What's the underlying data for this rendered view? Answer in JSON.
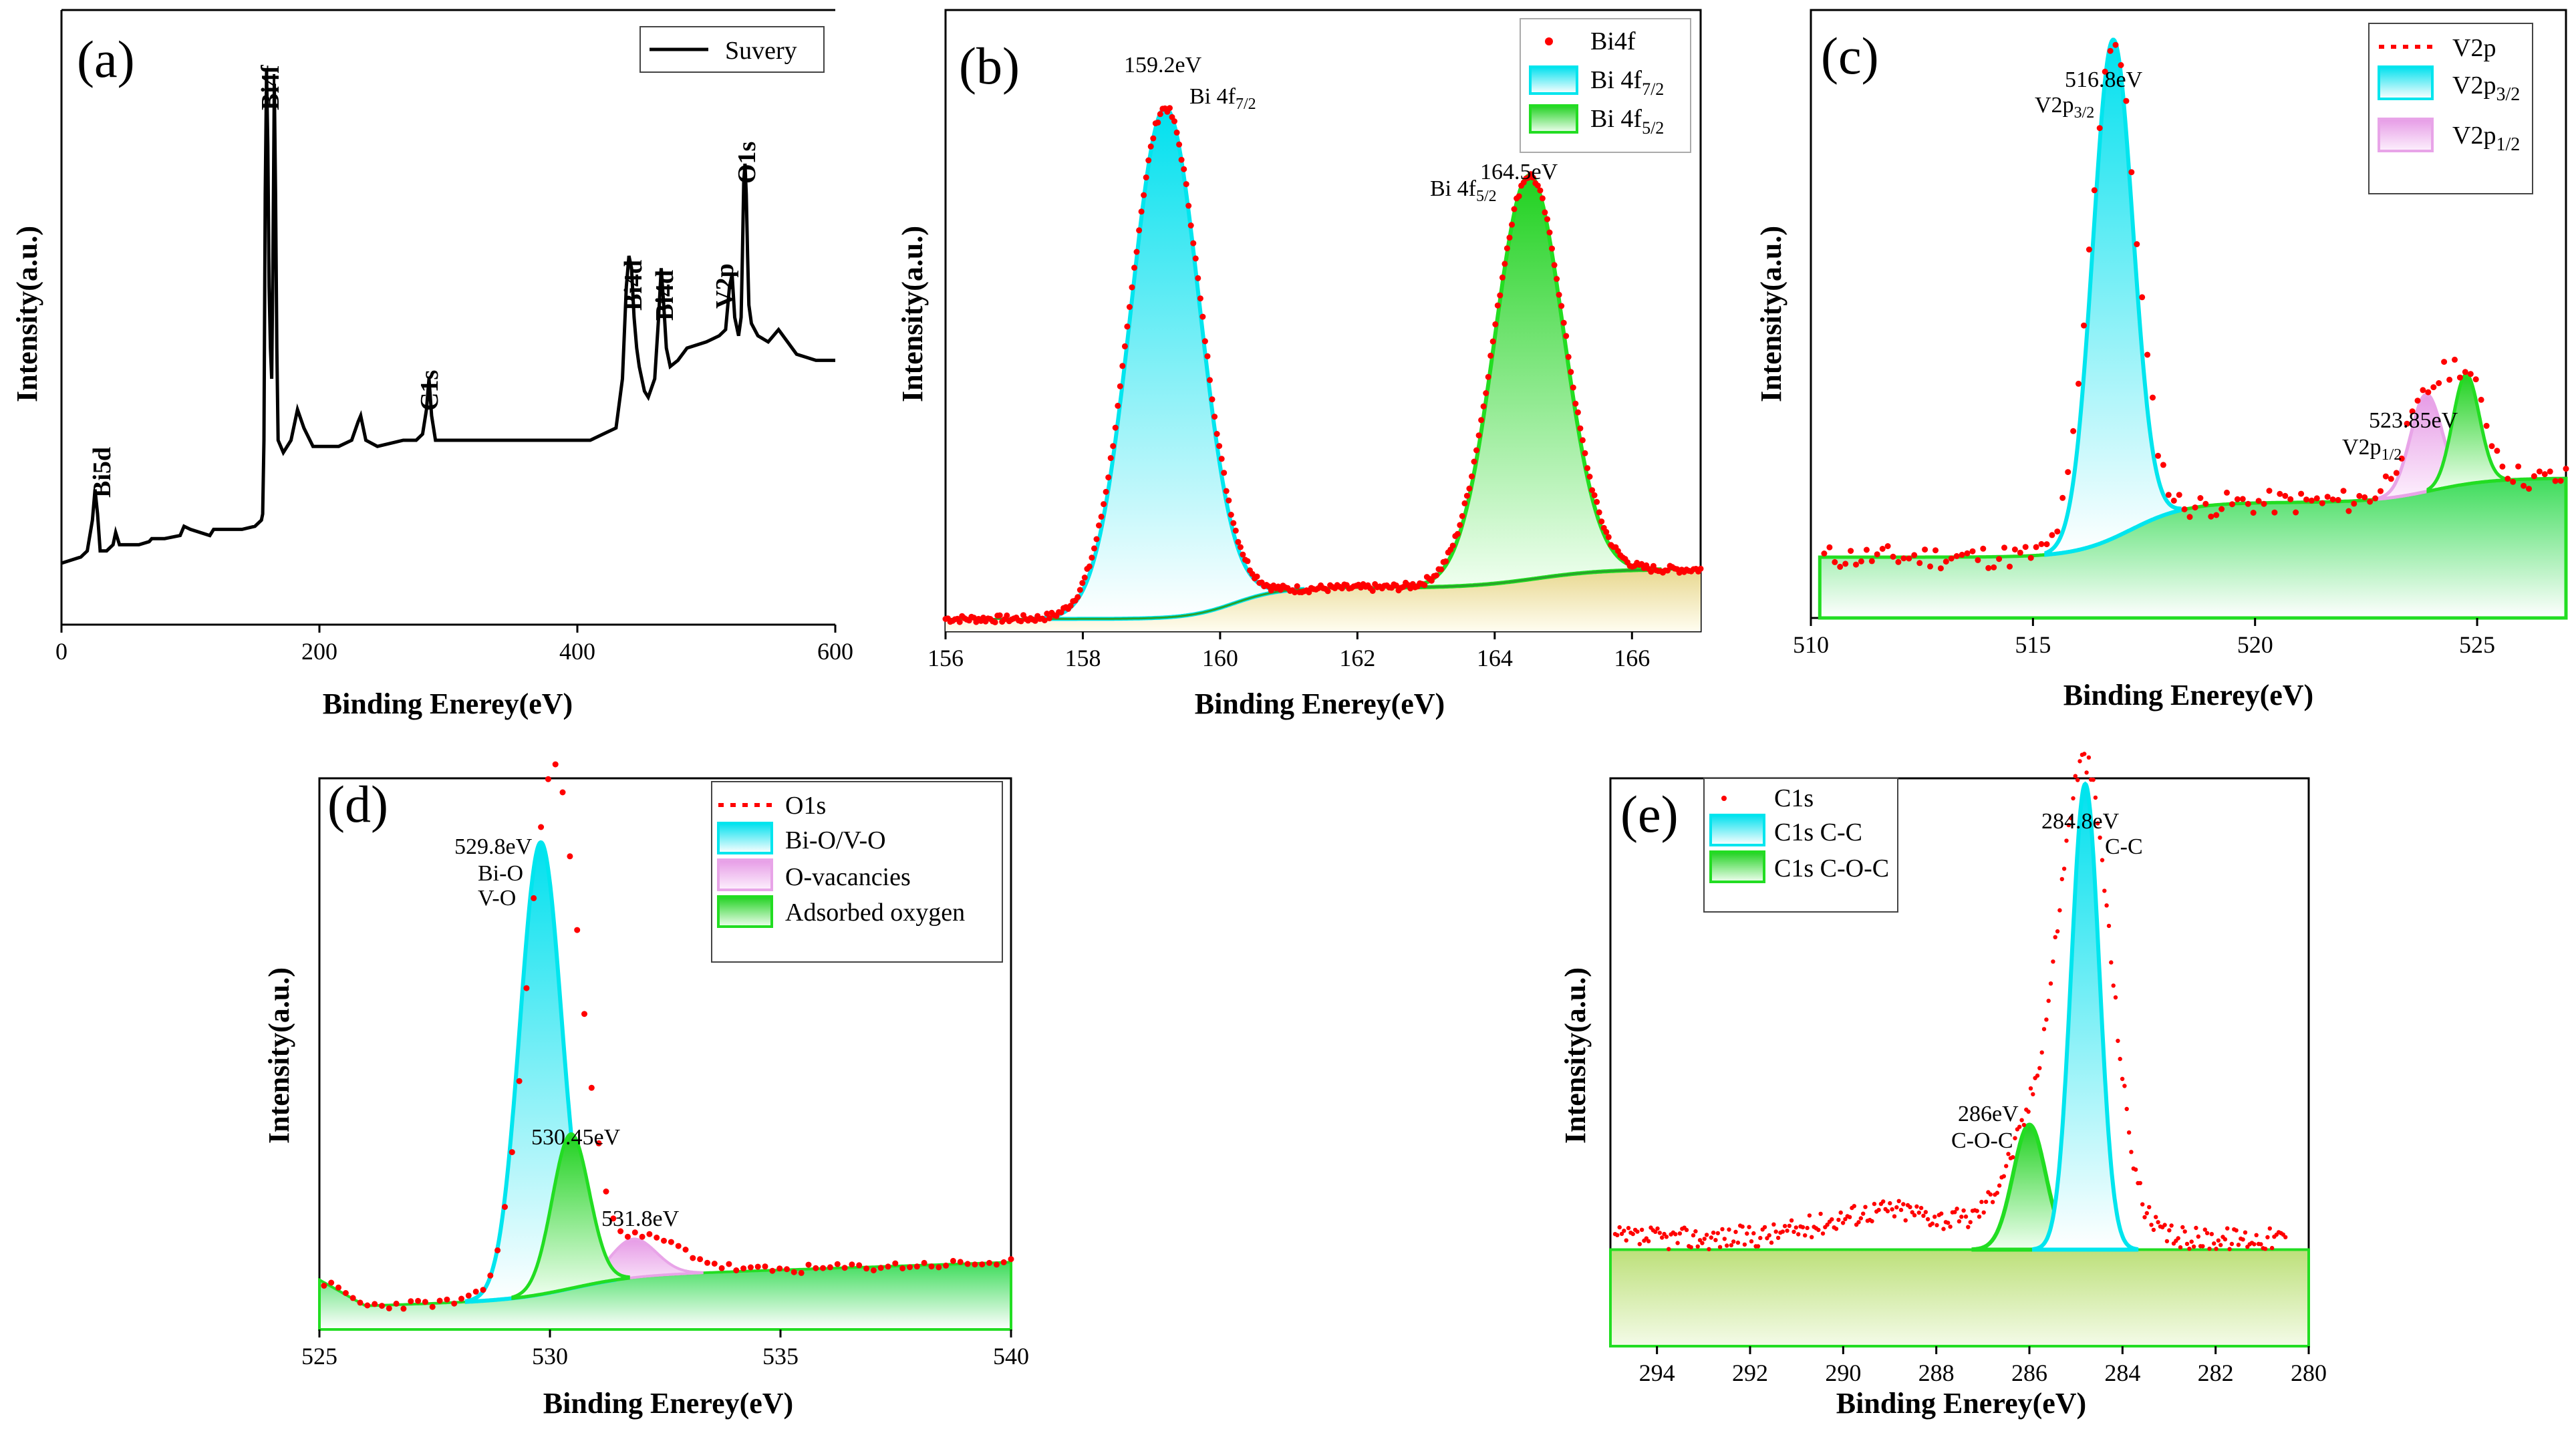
{
  "chart_data": [
    {
      "panel": "(a)",
      "type": "line",
      "xlabel": "Binding Enerey(eV)",
      "ylabel": "Intensity(a.u.)",
      "xlim": [
        0,
        600
      ],
      "ylim": [
        0,
        100
      ],
      "xticks": [
        "0",
        "200",
        "400",
        "600"
      ],
      "legend": [
        "Suvery"
      ],
      "series": [
        {
          "name": "Suvery",
          "x": [
            0,
            15,
            20,
            24,
            26,
            28,
            30,
            35,
            40,
            42,
            45,
            60,
            68,
            70,
            80,
            92,
            95,
            100,
            115,
            118,
            125,
            140,
            150,
            155,
            156,
            157,
            158,
            159,
            160,
            161,
            162,
            163,
            164,
            165,
            166,
            167,
            168,
            172,
            178,
            183,
            188,
            195,
            205,
            215,
            225,
            230,
            232,
            236,
            245,
            265,
            275,
            280,
            283,
            285,
            287,
            290,
            300,
            315,
            325,
            345,
            365,
            385,
            400,
            410,
            420,
            430,
            435,
            438,
            440,
            442,
            444,
            446,
            448,
            452,
            455,
            460,
            463,
            465,
            467,
            469,
            472,
            478,
            485,
            500,
            510,
            515,
            518,
            520,
            522,
            525,
            527,
            528,
            529,
            530,
            531,
            532,
            533,
            535,
            540,
            548,
            556,
            570,
            585,
            600
          ],
          "y": [
            10,
            11,
            12,
            17,
            22,
            18,
            12,
            12,
            13,
            15,
            13,
            13,
            13.5,
            14,
            14,
            14.5,
            16,
            15.5,
            14.5,
            15.5,
            15.5,
            15.5,
            16,
            17,
            18,
            30,
            70,
            90,
            78,
            55,
            45,
            40,
            60,
            88,
            70,
            45,
            30,
            28,
            30,
            35,
            32,
            29,
            29,
            29,
            30,
            33,
            34,
            30,
            29,
            30,
            30,
            31,
            35,
            40,
            34,
            30,
            30,
            30,
            30,
            30,
            30,
            30,
            30,
            30,
            31,
            32,
            40,
            55,
            60,
            58,
            50,
            45,
            42,
            38,
            37,
            40,
            50,
            58,
            52,
            45,
            42,
            43,
            45,
            46,
            47,
            48,
            55,
            57,
            50,
            47,
            50,
            60,
            72,
            75,
            70,
            60,
            52,
            49,
            47,
            46,
            48,
            44,
            43,
            43
          ]
        }
      ],
      "annotations": [
        "Bi4f",
        "Bi5d",
        "C1s",
        "Bi4d",
        "Bi4d",
        "V2p",
        "O1s"
      ]
    },
    {
      "panel": "(b)",
      "type": "line",
      "xlabel": "Binding Enerey(eV)",
      "ylabel": "Intensity(a.u.)",
      "xlim": [
        156,
        167
      ],
      "ylim": [
        0,
        100
      ],
      "xticks": [
        "156",
        "158",
        "160",
        "162",
        "164",
        "166"
      ],
      "legend": [
        "Bi4f",
        "Bi 4f7/2",
        "Bi 4f5/2"
      ],
      "series": [
        {
          "name": "Bi 4f7/2",
          "peak_center": 159.2,
          "sigma": 0.5,
          "amplitude": 82
        },
        {
          "name": "Bi 4f5/2",
          "peak_center": 164.5,
          "sigma": 0.5,
          "amplitude": 65
        },
        {
          "name": "Bi4f",
          "style": "dotted-red"
        }
      ],
      "annotations": [
        "159.2eV",
        "Bi 4f7/2",
        "164.5eV",
        "Bi 4f5/2"
      ]
    },
    {
      "panel": "(c)",
      "type": "line",
      "xlabel": "Binding Enerey(eV)",
      "ylabel": "Intensity(a.u.)",
      "xlim": [
        510,
        527
      ],
      "ylim": [
        0,
        100
      ],
      "xticks": [
        "510",
        "515",
        "520",
        "525"
      ],
      "legend": [
        "V2p",
        "V2p3/2",
        "V2p1/2"
      ],
      "series": [
        {
          "name": "V2p3/2",
          "peak_center": 516.8,
          "sigma": 0.45,
          "amplitude": 82
        },
        {
          "name": "V2p1/2",
          "peak_center": 523.85,
          "sigma": 0.35,
          "amplitude": 16
        },
        {
          "name": "V2p",
          "style": "dotted-red"
        }
      ],
      "annotations": [
        "516.8eV",
        "V2p3/2",
        "523.85eV",
        "V2p1/2"
      ]
    },
    {
      "panel": "(d)",
      "type": "line",
      "xlabel": "Binding Enerey(eV)",
      "ylabel": "Intensity(a.u.)",
      "xlim": [
        525,
        540
      ],
      "ylim": [
        0,
        100
      ],
      "xticks": [
        "525",
        "530",
        "535",
        "540"
      ],
      "legend": [
        "O1s",
        "Bi-O/V-O",
        "O-vacancies",
        "Adsorbed oxygen"
      ],
      "series": [
        {
          "name": "Bi-O/V-O",
          "peak_center": 529.8,
          "sigma": 0.45,
          "amplitude": 82
        },
        {
          "name": "Adsorbed oxygen",
          "peak_center": 530.45,
          "sigma": 0.4,
          "amplitude": 28
        },
        {
          "name": "O-vacancies",
          "peak_center": 531.8,
          "sigma": 0.5,
          "amplitude": 7
        },
        {
          "name": "O1s",
          "style": "dotted-red"
        }
      ],
      "annotations": [
        "529.8eV",
        "Bi-O",
        "V-O",
        "530.45eV",
        "531.8eV"
      ]
    },
    {
      "panel": "(e)",
      "type": "line",
      "xlabel": "Binding Enerey(eV)",
      "ylabel": "Intensity(a.u.)",
      "xlim": [
        295,
        280
      ],
      "ylim": [
        0,
        100
      ],
      "xticks": [
        "294",
        "292",
        "290",
        "288",
        "286",
        "284",
        "282",
        "280"
      ],
      "legend": [
        "C1s",
        "C1s C-C",
        "C1s C-O-C"
      ],
      "series": [
        {
          "name": "C1s C-C",
          "peak_center": 284.8,
          "sigma": 0.3,
          "amplitude": 82
        },
        {
          "name": "C1s C-O-C",
          "peak_center": 286.0,
          "sigma": 0.35,
          "amplitude": 22
        },
        {
          "name": "C1s",
          "style": "dotted-red"
        }
      ],
      "annotations": [
        "284.8eV",
        "C-C",
        "286eV",
        "C-O-C"
      ]
    }
  ],
  "colors": {
    "cyan": "#00e5ee",
    "green": "#22dd22",
    "pink": "#e8a4e8",
    "red": "#ff0000",
    "dark_green": "#1a9a1a"
  }
}
